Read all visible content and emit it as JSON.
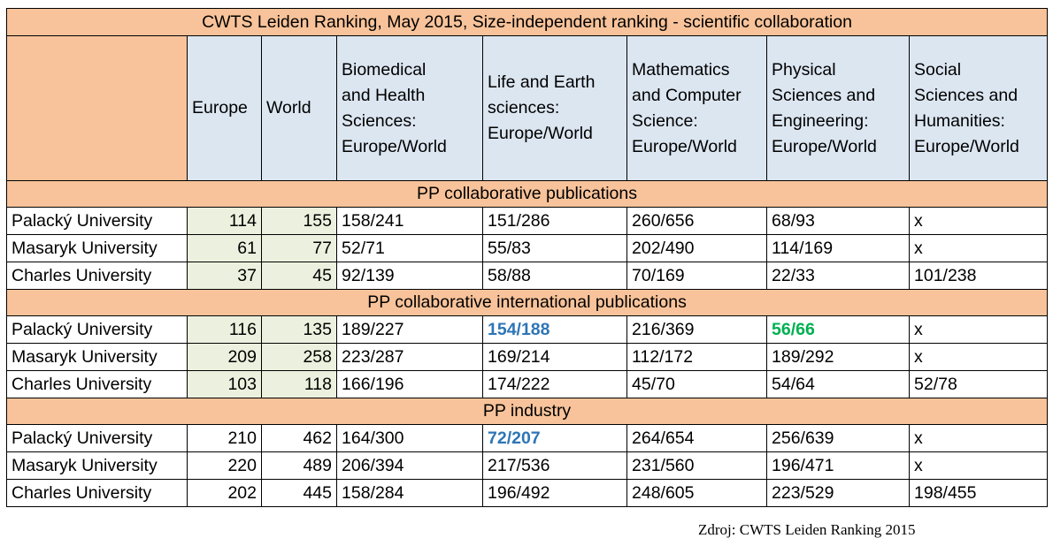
{
  "title": "CWTS Leiden Ranking, May 2015, Size-independent ranking - scientific collaboration",
  "headers": {
    "europe": "Europe",
    "world": "World",
    "biomed": [
      "Biomedical",
      "and Health",
      "Sciences:",
      "Europe/World"
    ],
    "life": [
      "Life and Earth",
      "sciences:",
      "Europe/World"
    ],
    "math": [
      "Mathematics",
      "and Computer",
      "Science:",
      "Europe/World"
    ],
    "phys": [
      "Physical",
      "Sciences and",
      "Engineering:",
      "Europe/World"
    ],
    "social": [
      "Social",
      "Sciences and",
      "Humanities:",
      "Europe/World"
    ]
  },
  "sections": [
    {
      "name": "PP  collaborative publications",
      "rows": [
        {
          "university": "Palacký University",
          "europe": "114",
          "world": "155",
          "biomed": "158/241",
          "life": "151/286",
          "math": "260/656",
          "phys": "68/93",
          "social": "x"
        },
        {
          "university": "Masaryk University",
          "europe": "61",
          "world": "77",
          "biomed": "52/71",
          "life": "55/83",
          "math": "202/490",
          "phys": "114/169",
          "social": "x"
        },
        {
          "university": "Charles University",
          "europe": "37",
          "world": "45",
          "biomed": "92/139",
          "life": "58/88",
          "math": "70/169",
          "phys": "22/33",
          "social": "101/238"
        }
      ]
    },
    {
      "name": "PP  collaborative international publications",
      "rows": [
        {
          "university": "Palacký University",
          "europe": "116",
          "world": "135",
          "biomed": "189/227",
          "life": "154/188",
          "math": "216/369",
          "phys": "56/66",
          "social": "x"
        },
        {
          "university": "Masaryk University",
          "europe": "209",
          "world": "258",
          "biomed": "223/287",
          "life": "169/214",
          "math": "112/172",
          "phys": "189/292",
          "social": "x"
        },
        {
          "university": "Charles University",
          "europe": "103",
          "world": "118",
          "biomed": "166/196",
          "life": "174/222",
          "math": "45/70",
          "phys": "54/64",
          "social": "52/78"
        }
      ]
    },
    {
      "name": "PP industry",
      "rows": [
        {
          "university": "Palacký University",
          "europe": "210",
          "world": "462",
          "biomed": "164/300",
          "life": "72/207",
          "math": "264/654",
          "phys": "256/639",
          "social": "x"
        },
        {
          "university": "Masaryk University",
          "europe": "220",
          "world": "489",
          "biomed": "206/394",
          "life": "217/536",
          "math": "231/560",
          "phys": "196/471",
          "social": "x"
        },
        {
          "university": "Charles University",
          "europe": "202",
          "world": "445",
          "biomed": "158/284",
          "life": "196/492",
          "math": "248/605",
          "phys": "223/529",
          "social": "198/455"
        }
      ]
    }
  ],
  "source": "Zdroj: CWTS Leiden Ranking 2015",
  "colors": {
    "header_orange": "#f8c39a",
    "header_blue": "#dce6f1",
    "cell_green": "#ebf1de",
    "highlight_blue": "#2e75b6",
    "highlight_green": "#00b050"
  }
}
